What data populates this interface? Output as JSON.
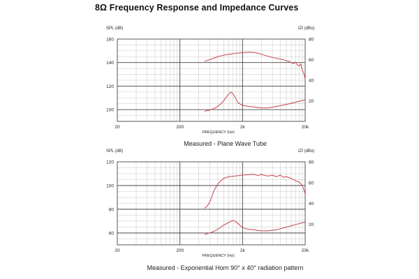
{
  "title": "8Ω Frequency Response and Impedance Curves",
  "chart_data": [
    {
      "type": "line",
      "title": "",
      "caption": "Measured - Plane Wave Tube",
      "xlabel": "FREQUENCY (Hz)",
      "ylabel_left": "SPL (dB)",
      "ylabel_right": "IZI (dBo)",
      "x_scale": "log",
      "xlim": [
        20,
        20000
      ],
      "x_ticks": [
        {
          "v": 20,
          "label": "20"
        },
        {
          "v": 200,
          "label": "200"
        },
        {
          "v": 2000,
          "label": "2k"
        },
        {
          "v": 20000,
          "label": "20k"
        }
      ],
      "ylim_left": [
        90,
        160
      ],
      "y_ticks_left": [
        {
          "v": 100,
          "label": "100"
        },
        {
          "v": 120,
          "label": "120"
        },
        {
          "v": 140,
          "label": "140"
        },
        {
          "v": 160,
          "label": "160"
        }
      ],
      "ylim_right": [
        0,
        80
      ],
      "y_ticks_right": [
        {
          "v": 20,
          "label": "20"
        },
        {
          "v": 40,
          "label": "40"
        },
        {
          "v": 60,
          "label": "60"
        },
        {
          "v": 80,
          "label": "80"
        }
      ],
      "grid": true,
      "series": [
        {
          "axis": "left",
          "x": [
            500,
            600,
            700,
            800,
            1000,
            1200,
            1500,
            2000,
            2500,
            3000,
            3500,
            4000,
            5000,
            6000,
            7000,
            8000,
            9000,
            10000,
            11000,
            12000,
            13000,
            14000,
            15000,
            16000,
            17000,
            18000,
            19000,
            20000
          ],
          "y": [
            141,
            142.5,
            143.8,
            145,
            146.3,
            147,
            147.8,
            148.5,
            148.8,
            148.6,
            148,
            147,
            145.5,
            144.3,
            143.7,
            143,
            142.5,
            141.5,
            141,
            140,
            139,
            140.5,
            138,
            137,
            139,
            133.5,
            131,
            126
          ]
        },
        {
          "axis": "right",
          "x": [
            500,
            600,
            700,
            800,
            900,
            1000,
            1100,
            1200,
            1300,
            1400,
            1500,
            1700,
            2000,
            2500,
            3000,
            4000,
            5000,
            7000,
            10000,
            14000,
            20000
          ],
          "y": [
            10,
            11,
            12.5,
            14.5,
            17,
            20,
            23.5,
            26.5,
            28.5,
            27,
            24,
            18,
            15.5,
            14.5,
            14,
            13,
            13,
            14.5,
            16.5,
            18.5,
            21
          ]
        }
      ]
    },
    {
      "type": "line",
      "title": "",
      "caption": "Measured - Exponential Horn 90° x 40° radiation pattern",
      "xlabel": "FREQUENCY (Hz)",
      "ylabel_left": "SPL (dB)",
      "ylabel_right": "IZI (dBo)",
      "x_scale": "log",
      "xlim": [
        20,
        20000
      ],
      "x_ticks": [
        {
          "v": 20,
          "label": "20"
        },
        {
          "v": 200,
          "label": "200"
        },
        {
          "v": 2000,
          "label": "2k"
        },
        {
          "v": 20000,
          "label": "20k"
        }
      ],
      "ylim_left": [
        50,
        120
      ],
      "y_ticks_left": [
        {
          "v": 60,
          "label": "60"
        },
        {
          "v": 80,
          "label": "80"
        },
        {
          "v": 100,
          "label": "100"
        },
        {
          "v": 120,
          "label": "120"
        }
      ],
      "ylim_right": [
        0,
        80
      ],
      "y_ticks_right": [
        {
          "v": 20,
          "label": "20"
        },
        {
          "v": 40,
          "label": "40"
        },
        {
          "v": 60,
          "label": "60"
        },
        {
          "v": 80,
          "label": "80"
        }
      ],
      "grid": true,
      "series": [
        {
          "axis": "left",
          "x": [
            500,
            550,
            600,
            650,
            700,
            800,
            900,
            1000,
            1200,
            1500,
            2000,
            2500,
            3000,
            3500,
            4000,
            5000,
            6000,
            7000,
            8000,
            9000,
            10000,
            11000,
            12000,
            14000,
            16000,
            18000,
            20000
          ],
          "y": [
            81,
            83,
            86,
            91,
            96,
            101,
            104,
            106,
            107.5,
            108,
            108.8,
            109.2,
            109.5,
            108.5,
            109.3,
            108,
            108.7,
            107.5,
            108.8,
            107,
            107.5,
            106.7,
            106,
            104,
            103,
            100,
            93
          ]
        },
        {
          "axis": "right",
          "x": [
            500,
            600,
            700,
            800,
            900,
            1000,
            1200,
            1400,
            1600,
            1800,
            2000,
            2500,
            3000,
            4000,
            5000,
            7000,
            10000,
            14000,
            20000
          ],
          "y": [
            10,
            11.5,
            13,
            15,
            17,
            19,
            21.5,
            23.5,
            22,
            19,
            16.5,
            15,
            14.5,
            13.5,
            13.5,
            14.5,
            17,
            19.5,
            22
          ]
        }
      ]
    }
  ]
}
